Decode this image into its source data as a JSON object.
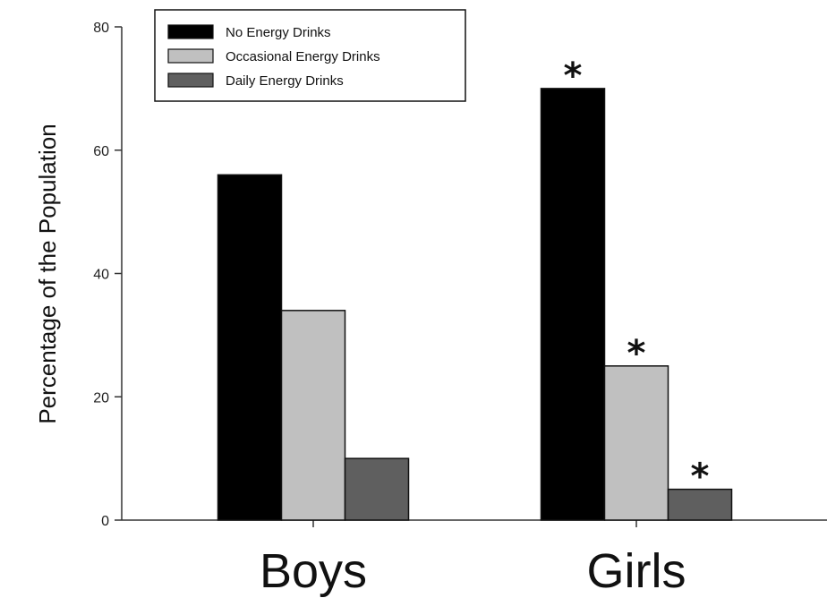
{
  "chart_data": {
    "type": "bar",
    "title": "",
    "xlabel": "",
    "ylabel": "Percentage of the Population",
    "ylim": [
      0,
      80
    ],
    "yticks": [
      "0",
      "20",
      "40",
      "60",
      "80"
    ],
    "categories": [
      "Boys",
      "Girls"
    ],
    "series": [
      {
        "name": "No Energy Drinks",
        "color": "#000000",
        "values": [
          56,
          70
        ],
        "annotations": [
          "",
          "*"
        ]
      },
      {
        "name": "Occasional Energy Drinks",
        "color": "#c0c0c0",
        "values": [
          34,
          25
        ],
        "annotations": [
          "",
          "*"
        ]
      },
      {
        "name": "Daily Energy Drinks",
        "color": "#5f5f5f",
        "values": [
          10,
          5
        ],
        "annotations": [
          "",
          "*"
        ]
      }
    ],
    "legend_position": "top-left",
    "grid": false
  }
}
